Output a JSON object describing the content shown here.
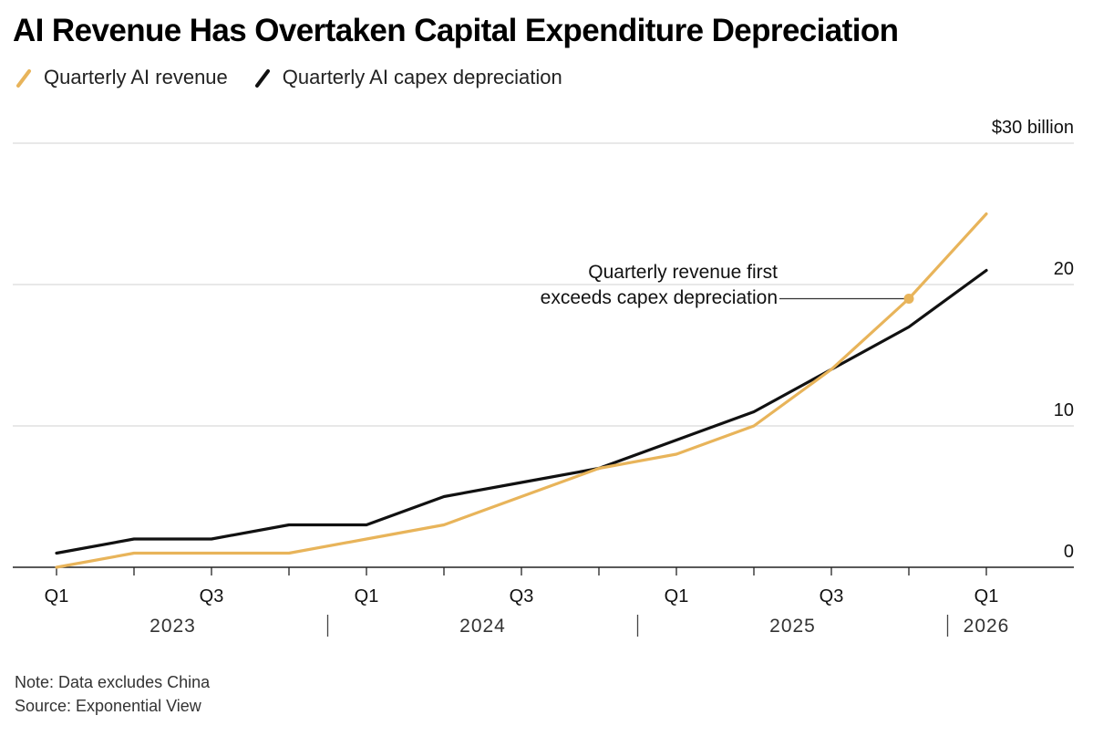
{
  "title": "AI Revenue Has Overtaken Capital Expenditure Depreciation",
  "legend": [
    {
      "label": "Quarterly AI revenue",
      "color": "#e8b45a"
    },
    {
      "label": "Quarterly AI capex depreciation",
      "color": "#111111"
    }
  ],
  "footer": {
    "note": "Note: Data excludes China",
    "source": "Source: Exponential View"
  },
  "chart_data": {
    "type": "line",
    "title": "AI Revenue Has Overtaken Capital Expenditure Depreciation",
    "xlabel": "",
    "ylabel": "",
    "ylim": [
      0,
      30
    ],
    "y_ticks": [
      {
        "value": 30,
        "label": "$30 billion"
      },
      {
        "value": 20,
        "label": "20"
      },
      {
        "value": 10,
        "label": "10"
      },
      {
        "value": 0,
        "label": "0"
      }
    ],
    "x": [
      "2023 Q1",
      "2023 Q2",
      "2023 Q3",
      "2023 Q4",
      "2024 Q1",
      "2024 Q2",
      "2024 Q3",
      "2024 Q4",
      "2025 Q1",
      "2025 Q2",
      "2025 Q3",
      "2025 Q4",
      "2026 Q1"
    ],
    "x_tick_labels": [
      "Q1",
      "",
      "Q3",
      "",
      "Q1",
      "",
      "Q3",
      "",
      "Q1",
      "",
      "Q3",
      "",
      "Q1"
    ],
    "year_labels": [
      {
        "label": "2023",
        "start": 0,
        "end": 3
      },
      {
        "label": "2024",
        "start": 4,
        "end": 7
      },
      {
        "label": "2025",
        "start": 8,
        "end": 11
      },
      {
        "label": "2026",
        "start": 12,
        "end": 12
      }
    ],
    "series": [
      {
        "name": "Quarterly AI revenue",
        "color": "#e8b45a",
        "values": [
          0,
          1,
          1,
          1,
          2,
          3,
          5,
          7,
          8,
          10,
          14,
          19,
          25
        ]
      },
      {
        "name": "Quarterly AI capex depreciation",
        "color": "#111111",
        "values": [
          1,
          2,
          2,
          3,
          3,
          5,
          6,
          7,
          9,
          11,
          14,
          17,
          21
        ]
      }
    ],
    "annotation": {
      "text_lines": [
        "Quarterly revenue first",
        "exceeds capex depreciation"
      ],
      "x_index": 11,
      "y": 19
    },
    "grid": true,
    "legend_position": "top-left"
  }
}
